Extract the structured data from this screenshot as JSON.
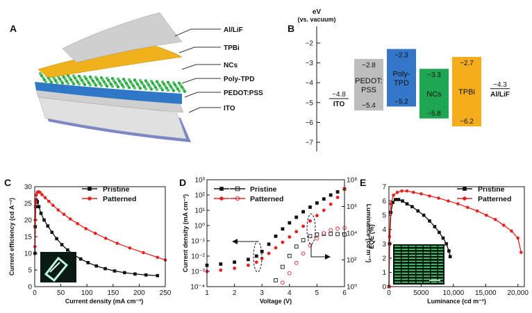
{
  "panel_a": {
    "letter": "A",
    "layers": [
      {
        "name": "Al/LiF",
        "color": "#c8c8c8"
      },
      {
        "name": "TPBi",
        "color": "#f0b21c"
      },
      {
        "name": "NCs",
        "color": "#3a9a3a"
      },
      {
        "name": "Poly-TPD",
        "color": "#2f78c8"
      },
      {
        "name": "PEDOT:PSS",
        "color": "#bfbfbf"
      },
      {
        "name": "ITO",
        "color": "#7b85c8"
      }
    ]
  },
  "panel_b": {
    "letter": "B",
    "axis_title": "eV",
    "axis_subtitle": "(vs. vacuum)",
    "ticks": [
      -2,
      -3,
      -4,
      -5,
      -6,
      -7
    ],
    "tick_labels": [
      "−2",
      "−3",
      "−4",
      "−5",
      "−6",
      "−7"
    ],
    "ito": {
      "label": "ITO",
      "value": -4.8,
      "value_label": "−4.8"
    },
    "alif": {
      "label": "Al/LiF",
      "value": -4.3,
      "value_label": "−4.3"
    },
    "bands": [
      {
        "name": "PEDOT:\nPSS",
        "line1": "PEDOT:",
        "line2": "PSS",
        "top": -2.8,
        "bottom": -5.4,
        "top_label": "−2.8",
        "bottom_label": "−5.4",
        "color": "#bdbdbd",
        "text_color": "#ffffff"
      },
      {
        "name": "Poly-TPD",
        "line1": "Poly-",
        "line2": "TPD",
        "top": -2.3,
        "bottom": -5.2,
        "top_label": "−2.3",
        "bottom_label": "−5.2",
        "color": "#3477c9",
        "text_color": "#ffffff"
      },
      {
        "name": "NCs",
        "line1": "NCs",
        "line2": "",
        "top": -3.3,
        "bottom": -5.8,
        "top_label": "−3.3",
        "bottom_label": "−5.8",
        "color": "#1fa653",
        "text_color": "#ffffff"
      },
      {
        "name": "TPBi",
        "line1": "TPBi",
        "line2": "",
        "top": -2.7,
        "bottom": -6.2,
        "top_label": "−2.7",
        "bottom_label": "−6.2",
        "color": "#f5ad1b",
        "text_color": "#ffffff"
      }
    ]
  },
  "chart_data": [
    {
      "panel": "C",
      "type": "line",
      "xlabel": "Current density (mA cm⁻²)",
      "ylabel": "Current efficiency (cd A⁻¹)",
      "xlim": [
        0,
        250
      ],
      "ylim": [
        0,
        30
      ],
      "xticks": [
        0,
        50,
        100,
        150,
        200,
        250
      ],
      "yticks": [
        0,
        5,
        10,
        15,
        20,
        25,
        30
      ],
      "legend": "top-right",
      "series": [
        {
          "name": "Pristine",
          "color": "#111111",
          "marker": "square",
          "x": [
            0.5,
            1,
            2,
            3,
            5,
            8,
            12,
            18,
            25,
            33,
            42,
            52,
            63,
            75,
            88,
            102,
            118,
            135,
            153,
            172,
            192,
            213,
            235
          ],
          "y": [
            10,
            18,
            24,
            26,
            25.5,
            24,
            22,
            20,
            18.2,
            16.3,
            14.4,
            12.6,
            11,
            9.6,
            8.3,
            7.2,
            6.2,
            5.4,
            4.7,
            4.2,
            3.8,
            3.5,
            3.3
          ]
        },
        {
          "name": "Patterned",
          "color": "#e8211f",
          "marker": "circle",
          "x": [
            0.5,
            1,
            2,
            3,
            5,
            7,
            10,
            14,
            20,
            27,
            35,
            45,
            56,
            68,
            82,
            98,
            116,
            136,
            158,
            182,
            208,
            235,
            250
          ],
          "y": [
            12,
            20,
            25.5,
            27.5,
            28.3,
            28.5,
            28.3,
            27.6,
            26.7,
            25.6,
            24.4,
            23,
            21.7,
            20.3,
            18.9,
            17.4,
            16,
            14.5,
            13,
            11.6,
            10.2,
            8.8,
            8
          ]
        }
      ]
    },
    {
      "panel": "D",
      "type": "line",
      "xlabel": "Voltage (V)",
      "ylabel": "Current density (mA cm⁻²)",
      "ylabel_right": "Luminance (cd m⁻²)",
      "xlim": [
        1,
        6
      ],
      "ylim": [
        0.0001,
        1000
      ],
      "ylim_right": [
        1,
        100000000
      ],
      "xticks": [
        1,
        2,
        3,
        4,
        5,
        6
      ],
      "yticks_labels": [
        "10⁻⁴",
        "10⁻³",
        "10⁻²",
        "10⁻¹",
        "10⁰",
        "10¹",
        "10²",
        "10³"
      ],
      "yticks_right_labels": [
        "10⁰",
        "10²",
        "10⁴",
        "10⁶",
        "10⁸"
      ],
      "legend": "top-left",
      "series": [
        {
          "name": "Pristine",
          "color": "#111111",
          "marker": "square",
          "axis": "left",
          "x": [
            1,
            1.5,
            2,
            2.5,
            2.8,
            3,
            3.25,
            3.5,
            3.75,
            4,
            4.25,
            4.5,
            4.75,
            5,
            5.25,
            5.5,
            5.75,
            6
          ],
          "y": [
            0.0025,
            0.003,
            0.004,
            0.006,
            0.01,
            0.02,
            0.06,
            0.2,
            0.6,
            1.5,
            3.5,
            8,
            16,
            30,
            55,
            100,
            160,
            250
          ]
        },
        {
          "name": "Patterned",
          "color": "#e8211f",
          "marker": "circle",
          "axis": "left",
          "x": [
            1,
            1.5,
            2,
            2.5,
            2.8,
            3,
            3.25,
            3.5,
            3.75,
            4,
            4.25,
            4.5,
            4.75,
            5,
            5.25,
            5.5,
            5.75,
            6
          ],
          "y": [
            0.001,
            0.0012,
            0.0016,
            0.0025,
            0.004,
            0.007,
            0.015,
            0.035,
            0.08,
            0.18,
            0.4,
            0.9,
            2,
            4.5,
            10,
            25,
            70,
            250
          ]
        },
        {
          "name": "Pristine luminance",
          "color": "#111111",
          "marker": "square-open",
          "axis": "right",
          "x": [
            3.5,
            3.75,
            4,
            4.25,
            4.5,
            4.75,
            5,
            5.25,
            5.5,
            5.75,
            6
          ],
          "y": [
            3,
            30,
            200,
            1000,
            3000,
            6000,
            8000,
            9000,
            9000,
            8500,
            8000
          ]
        },
        {
          "name": "Patterned luminance",
          "color": "#e8211f",
          "marker": "circle-open",
          "axis": "right",
          "x": [
            3.75,
            4,
            4.25,
            4.5,
            4.75,
            5,
            5.25,
            5.5,
            5.75,
            6
          ],
          "y": [
            2,
            10,
            60,
            300,
            1200,
            4000,
            10000,
            17000,
            22000,
            25000
          ]
        }
      ]
    },
    {
      "panel": "E",
      "type": "line",
      "xlabel": "Luminance (cd m⁻²)",
      "ylabel": "EQE (%)",
      "xlim": [
        0,
        21000
      ],
      "ylim": [
        0,
        7
      ],
      "xticks": [
        0,
        5000,
        10000,
        15000,
        20000
      ],
      "xtick_labels": [
        "0",
        "5000",
        "10,000",
        "15,000",
        "20,000"
      ],
      "yticks": [
        0,
        1,
        2,
        3,
        4,
        5,
        6,
        7
      ],
      "legend": "top-right",
      "series": [
        {
          "name": "Pristine",
          "color": "#111111",
          "marker": "square",
          "x": [
            0,
            100,
            300,
            600,
            1000,
            1500,
            2100,
            2800,
            3600,
            4500,
            5400,
            6300,
            7100,
            7800,
            8400,
            8900,
            9300,
            9500
          ],
          "y": [
            0,
            3,
            5.2,
            5.9,
            6.1,
            6.1,
            6,
            5.8,
            5.6,
            5.3,
            5,
            4.6,
            4.2,
            3.8,
            3.4,
            3,
            2.5,
            2.1
          ]
        },
        {
          "name": "Patterned",
          "color": "#e8211f",
          "marker": "circle",
          "x": [
            0,
            100,
            300,
            700,
            1300,
            2000,
            2800,
            3800,
            5000,
            6300,
            7700,
            9200,
            10700,
            12200,
            13700,
            15100,
            16500,
            17800,
            19000,
            20000,
            20500
          ],
          "y": [
            0,
            3.5,
            5.8,
            6.4,
            6.6,
            6.7,
            6.7,
            6.6,
            6.5,
            6.35,
            6.2,
            6,
            5.8,
            5.55,
            5.3,
            5,
            4.7,
            4.3,
            3.9,
            3.4,
            2.4
          ]
        }
      ]
    }
  ],
  "panel_letters": {
    "c": "C",
    "d": "D",
    "e": "E"
  }
}
